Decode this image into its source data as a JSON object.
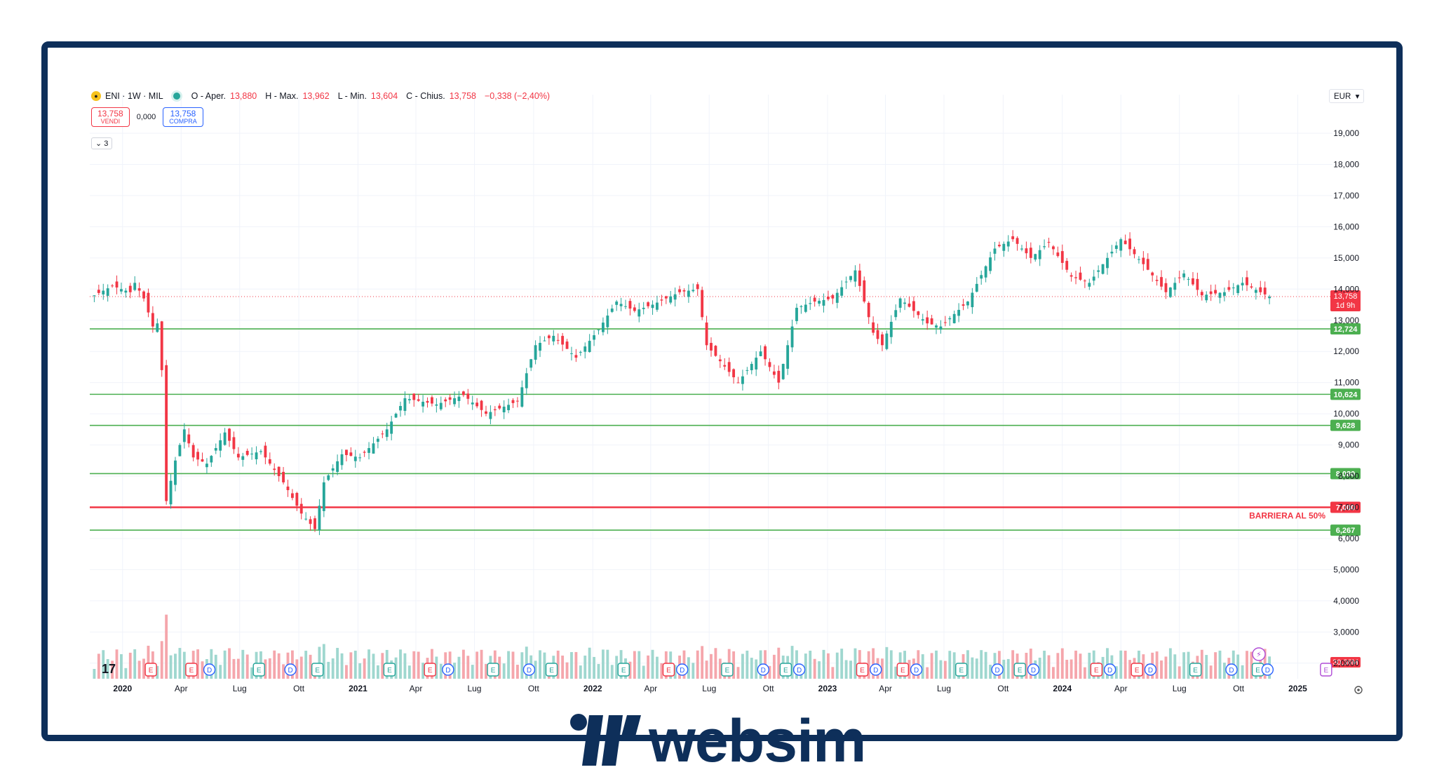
{
  "header": {
    "symbol": "ENI · 1W · MIL",
    "open_label": "O - Aper.",
    "open": "13,880",
    "high_label": "H - Max.",
    "high": "13,962",
    "low_label": "L - Min.",
    "low": "13,604",
    "close_label": "C - Chius.",
    "close": "13,758",
    "change": "−0,338 (−2,40%)"
  },
  "trade": {
    "sell_price": "13,758",
    "sell_label": "VENDI",
    "spread": "0,000",
    "buy_price": "13,758",
    "buy_label": "COMPRA"
  },
  "indicators_label": "3",
  "currency": "EUR",
  "colors": {
    "up": "#26a69a",
    "down": "#f23645",
    "up_volume": "#9fd7cf",
    "down_volume": "#f5a6ac",
    "support": "#4caf50",
    "barrier": "#f23645",
    "frame": "#0e2f5a"
  },
  "chart_data": {
    "type": "candlestick",
    "interval": "1W",
    "y_axis_ticks": [
      "19,000",
      "18,000",
      "17,000",
      "16,000",
      "15,000",
      "14,000",
      "13,000",
      "12,000",
      "11,000",
      "10,000",
      "9,000",
      "8,000",
      "7,000",
      "6,000",
      "5,0000",
      "4,0000",
      "3,0000",
      "2,0000"
    ],
    "ylim": [
      1.5,
      19.9
    ],
    "x_axis_ticks": [
      "2020",
      "Apr",
      "Lug",
      "Ott",
      "2021",
      "Apr",
      "Lug",
      "Ott",
      "2022",
      "Apr",
      "Lug",
      "Ott",
      "2023",
      "Apr",
      "Lug",
      "Ott",
      "2024",
      "Apr",
      "Lug",
      "Ott",
      "2025"
    ],
    "price_path": [
      [
        "2019-11-18",
        13.8
      ],
      [
        "2019-12-16",
        14.1
      ],
      [
        "2020-01-13",
        13.9
      ],
      [
        "2020-01-20",
        14.2
      ],
      [
        "2020-02-03",
        13.7
      ],
      [
        "2020-02-17",
        12.8
      ],
      [
        "2020-02-24",
        12.9
      ],
      [
        "2020-03-02",
        11.4
      ],
      [
        "2020-03-09",
        7.2
      ],
      [
        "2020-03-23",
        8.5
      ],
      [
        "2020-04-06",
        9.5
      ],
      [
        "2020-04-20",
        8.6
      ],
      [
        "2020-05-11",
        8.4
      ],
      [
        "2020-06-08",
        9.4
      ],
      [
        "2020-06-29",
        8.6
      ],
      [
        "2020-08-03",
        8.8
      ],
      [
        "2020-09-07",
        7.8
      ],
      [
        "2020-10-05",
        6.8
      ],
      [
        "2020-10-26",
        6.3
      ],
      [
        "2020-11-09",
        7.8
      ],
      [
        "2020-12-07",
        8.7
      ],
      [
        "2021-01-04",
        8.6
      ],
      [
        "2021-02-15",
        9.5
      ],
      [
        "2021-03-15",
        10.5
      ],
      [
        "2021-05-03",
        10.3
      ],
      [
        "2021-06-14",
        10.6
      ],
      [
        "2021-07-19",
        10.0
      ],
      [
        "2021-09-06",
        10.4
      ],
      [
        "2021-10-04",
        12.2
      ],
      [
        "2021-11-01",
        12.5
      ],
      [
        "2021-12-06",
        11.8
      ],
      [
        "2022-01-10",
        12.7
      ],
      [
        "2022-02-07",
        13.6
      ],
      [
        "2022-03-07",
        13.3
      ],
      [
        "2022-04-04",
        13.5
      ],
      [
        "2022-05-16",
        13.9
      ],
      [
        "2022-06-13",
        14.0
      ],
      [
        "2022-06-27",
        12.2
      ],
      [
        "2022-08-15",
        11.0
      ],
      [
        "2022-09-19",
        12.0
      ],
      [
        "2022-10-17",
        11.0
      ],
      [
        "2022-11-14",
        13.4
      ],
      [
        "2022-12-12",
        13.6
      ],
      [
        "2023-01-09",
        13.7
      ],
      [
        "2023-02-13",
        14.6
      ],
      [
        "2023-03-13",
        12.6
      ],
      [
        "2023-03-27",
        12.2
      ],
      [
        "2023-04-24",
        13.7
      ],
      [
        "2023-06-05",
        12.9
      ],
      [
        "2023-06-26",
        12.8
      ],
      [
        "2023-08-07",
        13.6
      ],
      [
        "2023-09-18",
        15.3
      ],
      [
        "2023-10-16",
        15.6
      ],
      [
        "2023-11-13",
        15.0
      ],
      [
        "2023-12-11",
        15.5
      ],
      [
        "2024-01-15",
        14.4
      ],
      [
        "2024-02-12",
        14.2
      ],
      [
        "2024-04-01",
        15.6
      ],
      [
        "2024-05-06",
        14.8
      ],
      [
        "2024-06-10",
        13.9
      ],
      [
        "2024-07-08",
        14.5
      ],
      [
        "2024-08-05",
        13.8
      ],
      [
        "2024-09-09",
        13.9
      ],
      [
        "2024-10-07",
        14.2
      ],
      [
        "2024-11-04",
        13.9
      ],
      [
        "2024-11-18",
        13.758
      ]
    ],
    "horizontal_levels": [
      {
        "value": 12.724,
        "label": "12,724",
        "color": "#4caf50"
      },
      {
        "value": 10.624,
        "label": "10,624",
        "color": "#4caf50"
      },
      {
        "value": 9.628,
        "label": "9,628",
        "color": "#4caf50"
      },
      {
        "value": 8.08,
        "label": "8,080",
        "color": "#4caf50"
      },
      {
        "value": 7.0,
        "label": "7,000",
        "color": "#f23645",
        "annotation": "BARRIERA AL 50%"
      },
      {
        "value": 6.267,
        "label": "6,267",
        "color": "#4caf50"
      }
    ],
    "last_price": {
      "value": 13.758,
      "label": "13,758",
      "countdown": "1d 9h"
    },
    "volume_label": "30,36M",
    "event_markers": [
      {
        "type": "E",
        "date": "2020-02-14"
      },
      {
        "type": "E",
        "date": "2020-04-17"
      },
      {
        "type": "D",
        "date": "2020-05-15"
      },
      {
        "type": "E",
        "date": "2020-07-31"
      },
      {
        "type": "D",
        "date": "2020-09-18"
      },
      {
        "type": "E",
        "date": "2020-10-30"
      },
      {
        "type": "E",
        "date": "2021-02-19"
      },
      {
        "type": "E",
        "date": "2021-04-23"
      },
      {
        "type": "D",
        "date": "2021-05-21"
      },
      {
        "type": "E",
        "date": "2021-07-30"
      },
      {
        "type": "D",
        "date": "2021-09-24"
      },
      {
        "type": "E",
        "date": "2021-10-29"
      },
      {
        "type": "E",
        "date": "2022-02-18"
      },
      {
        "type": "E",
        "date": "2022-04-29"
      },
      {
        "type": "D",
        "date": "2022-05-20"
      },
      {
        "type": "E",
        "date": "2022-07-29"
      },
      {
        "type": "D",
        "date": "2022-09-23"
      },
      {
        "type": "E",
        "date": "2022-10-28"
      },
      {
        "type": "D",
        "date": "2022-11-18"
      },
      {
        "type": "E",
        "date": "2023-02-24"
      },
      {
        "type": "D",
        "date": "2023-03-17"
      },
      {
        "type": "E",
        "date": "2023-04-28"
      },
      {
        "type": "D",
        "date": "2023-05-19"
      },
      {
        "type": "E",
        "date": "2023-07-28"
      },
      {
        "type": "D",
        "date": "2023-09-22"
      },
      {
        "type": "E",
        "date": "2023-10-27"
      },
      {
        "type": "D",
        "date": "2023-11-17"
      },
      {
        "type": "E",
        "date": "2024-02-23"
      },
      {
        "type": "D",
        "date": "2024-03-15"
      },
      {
        "type": "E",
        "date": "2024-04-26"
      },
      {
        "type": "D",
        "date": "2024-05-17"
      },
      {
        "type": "E",
        "date": "2024-07-26"
      },
      {
        "type": "D",
        "date": "2024-09-20"
      },
      {
        "type": "E",
        "date": "2024-10-31"
      },
      {
        "type": "D",
        "date": "2024-11-15"
      },
      {
        "type": "E",
        "date": "2025-02-14",
        "upcoming": true
      }
    ]
  },
  "brand": {
    "name": "websim"
  }
}
